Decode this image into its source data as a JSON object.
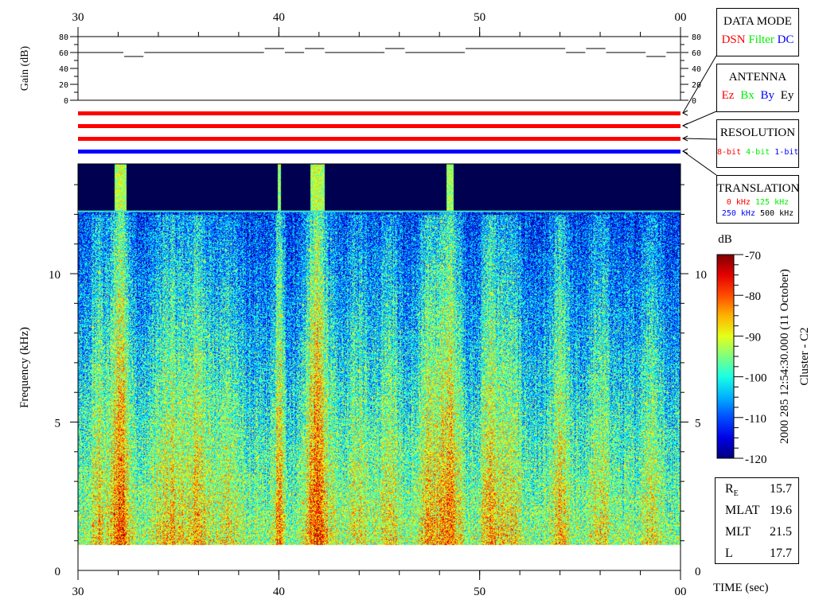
{
  "chart_data": {
    "type": "heatmap",
    "title": "",
    "time_ticks": [
      "30",
      "40",
      "50",
      "00"
    ],
    "xlabel": "TIME (sec)",
    "xlim": [
      30,
      60
    ],
    "ylabel": "Frequency (kHz)",
    "ylim": [
      0,
      13.7
    ],
    "freq_ticks": [
      "0",
      "5",
      "10"
    ],
    "colorbar": {
      "label": "dB",
      "range": [
        -120,
        -70
      ],
      "ticks": [
        "-70",
        "-80",
        "-90",
        "-100",
        "-110",
        "-120"
      ],
      "colormap": "jet"
    },
    "cutoff_line_khz": 12.1,
    "low_cutoff_khz": 0.86,
    "gain": {
      "ylabel": "Gain (dB)",
      "ylim": [
        0,
        80
      ],
      "ticks": [
        "0",
        "20",
        "40",
        "60",
        "80"
      ],
      "segments": [
        [
          30,
          32.3,
          60
        ],
        [
          32.3,
          33.3,
          55
        ],
        [
          33.3,
          39.3,
          60
        ],
        [
          39.3,
          40.3,
          65
        ],
        [
          40.3,
          41.3,
          60
        ],
        [
          41.3,
          42.3,
          65
        ],
        [
          42.3,
          45.3,
          60
        ],
        [
          45.3,
          46.3,
          65
        ],
        [
          46.3,
          49.3,
          60
        ],
        [
          49.3,
          54.3,
          65
        ],
        [
          54.3,
          55.3,
          60
        ],
        [
          55.3,
          56.3,
          65
        ],
        [
          56.3,
          58.3,
          60
        ],
        [
          58.3,
          59.3,
          55
        ],
        [
          59.3,
          60,
          60
        ]
      ]
    },
    "status_bars": [
      {
        "name": "data-mode",
        "color": "#ff0000"
      },
      {
        "name": "antenna",
        "color": "#ff0000"
      },
      {
        "name": "resolution",
        "color": "#ff0000"
      },
      {
        "name": "translation",
        "color": "#0000ff"
      }
    ]
  },
  "side_title": "2000 285 12:54:30.000 (11 October)",
  "spacecraft": "Cluster - C2",
  "legend": {
    "data_mode": {
      "title": "DATA MODE",
      "items": [
        {
          "label": "DSN",
          "color": "#ff0000"
        },
        {
          "label": "Filter",
          "color": "#00ee00"
        },
        {
          "label": "DC",
          "color": "#0000ff"
        }
      ]
    },
    "antenna": {
      "title": "ANTENNA",
      "items": [
        {
          "label": "Ez",
          "color": "#ff0000"
        },
        {
          "label": "Bx",
          "color": "#00ee00"
        },
        {
          "label": "By",
          "color": "#0000ff"
        },
        {
          "label": "Ey",
          "color": "#000000"
        }
      ]
    },
    "resolution": {
      "title": "RESOLUTION",
      "items": [
        {
          "label": "8-bit",
          "color": "#ff0000"
        },
        {
          "label": "4-bit",
          "color": "#00ee00"
        },
        {
          "label": "1-bit",
          "color": "#0000ff"
        }
      ]
    },
    "translation": {
      "title": "TRANSLATION",
      "items": [
        {
          "label": "0 kHz",
          "color": "#ff0000"
        },
        {
          "label": "125 kHz",
          "color": "#00ee00"
        },
        {
          "label": "250 kHz",
          "color": "#0000ff"
        },
        {
          "label": "500 kHz",
          "color": "#000000"
        }
      ]
    }
  },
  "info": [
    {
      "label": "R",
      "sub": "E",
      "value": "15.7"
    },
    {
      "label": "MLAT",
      "value": "19.6"
    },
    {
      "label": "MLT",
      "value": "21.5"
    },
    {
      "label": "L",
      "value": "17.7"
    }
  ]
}
